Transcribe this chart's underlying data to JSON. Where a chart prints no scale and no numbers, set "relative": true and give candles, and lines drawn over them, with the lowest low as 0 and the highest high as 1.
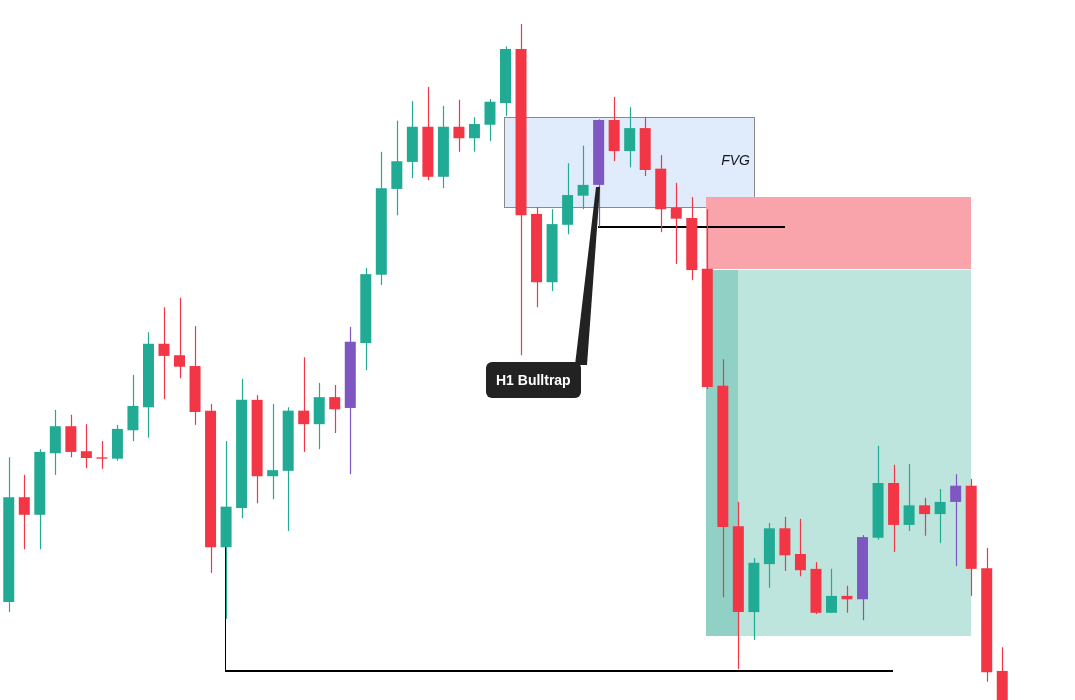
{
  "chart_data": {
    "type": "candlestick",
    "relative": true,
    "categories": [
      null,
      null,
      null,
      null,
      null,
      null,
      null,
      null,
      null,
      null,
      null,
      null,
      null,
      null,
      null,
      null,
      null,
      null,
      null,
      null,
      null,
      null,
      null,
      null,
      null,
      null,
      null,
      null,
      null,
      null,
      null,
      null,
      null,
      null,
      null,
      null,
      null,
      null,
      null,
      null,
      null,
      null,
      null,
      null,
      null,
      null,
      null,
      null,
      null,
      null,
      null,
      null,
      null,
      null,
      null,
      null,
      null,
      null,
      null,
      null,
      null,
      null,
      null,
      null,
      null
    ],
    "ohlc": [
      [
        0.145,
        0.359,
        0.13,
        0.3
      ],
      [
        0.3,
        0.333,
        0.223,
        0.274
      ],
      [
        0.274,
        0.371,
        0.223,
        0.367
      ],
      [
        0.365,
        0.429,
        0.333,
        0.405
      ],
      [
        0.405,
        0.422,
        0.359,
        0.367
      ],
      [
        0.368,
        0.408,
        0.343,
        0.358
      ],
      [
        0.359,
        0.383,
        0.342,
        0.357
      ],
      [
        0.357,
        0.407,
        0.354,
        0.401
      ],
      [
        0.399,
        0.481,
        0.383,
        0.435
      ],
      [
        0.433,
        0.544,
        0.388,
        0.527
      ],
      [
        0.527,
        0.581,
        0.445,
        0.509
      ],
      [
        0.51,
        0.595,
        0.476,
        0.493
      ],
      [
        0.494,
        0.553,
        0.407,
        0.426
      ],
      [
        0.428,
        0.438,
        0.188,
        0.226
      ],
      [
        0.226,
        0.383,
        0.12,
        0.286
      ],
      [
        0.284,
        0.475,
        0.269,
        0.444
      ],
      [
        0.444,
        0.451,
        0.291,
        0.331
      ],
      [
        0.331,
        0.438,
        0.297,
        0.34
      ],
      [
        0.339,
        0.433,
        0.25,
        0.428
      ],
      [
        0.428,
        0.507,
        0.367,
        0.408
      ],
      [
        0.408,
        0.469,
        0.371,
        0.448
      ],
      [
        0.448,
        0.466,
        0.395,
        0.43
      ],
      [
        0.432,
        0.552,
        0.334,
        0.53
      ],
      [
        0.528,
        0.639,
        0.488,
        0.63
      ],
      [
        0.629,
        0.811,
        0.614,
        0.757
      ],
      [
        0.756,
        0.857,
        0.717,
        0.797
      ],
      [
        0.796,
        0.886,
        0.772,
        0.848
      ],
      [
        0.848,
        0.907,
        0.769,
        0.774
      ],
      [
        0.774,
        0.879,
        0.757,
        0.848
      ],
      [
        0.848,
        0.888,
        0.811,
        0.831
      ],
      [
        0.831,
        0.862,
        0.811,
        0.852
      ],
      [
        0.851,
        0.889,
        0.827,
        0.885
      ],
      [
        0.883,
        0.967,
        0.864,
        0.963
      ],
      [
        0.963,
        1.0,
        0.51,
        0.717
      ],
      [
        0.719,
        0.729,
        0.581,
        0.618
      ],
      [
        0.618,
        0.726,
        0.605,
        0.704
      ],
      [
        0.703,
        0.794,
        0.689,
        0.747
      ],
      [
        0.746,
        0.82,
        0.726,
        0.762
      ],
      [
        0.762,
        0.859,
        0.7,
        0.858
      ],
      [
        0.858,
        0.892,
        0.797,
        0.812
      ],
      [
        0.812,
        0.877,
        0.788,
        0.846
      ],
      [
        0.846,
        0.862,
        0.775,
        0.784
      ],
      [
        0.786,
        0.806,
        0.692,
        0.726
      ],
      [
        0.728,
        0.765,
        0.645,
        0.712
      ],
      [
        0.713,
        0.744,
        0.621,
        0.636
      ],
      [
        0.638,
        0.726,
        0.46,
        0.463
      ],
      [
        0.465,
        0.504,
        0.152,
        0.256
      ],
      [
        0.257,
        0.293,
        0.046,
        0.13
      ],
      [
        0.13,
        0.21,
        0.089,
        0.203
      ],
      [
        0.201,
        0.262,
        0.166,
        0.254
      ],
      [
        0.254,
        0.271,
        0.191,
        0.214
      ],
      [
        0.216,
        0.268,
        0.183,
        0.192
      ],
      [
        0.194,
        0.204,
        0.127,
        0.129
      ],
      [
        0.129,
        0.194,
        0.129,
        0.154
      ],
      [
        0.154,
        0.169,
        0.129,
        0.149
      ],
      [
        0.149,
        0.244,
        0.118,
        0.241
      ],
      [
        0.24,
        0.376,
        0.237,
        0.321
      ],
      [
        0.321,
        0.348,
        0.219,
        0.259
      ],
      [
        0.259,
        0.349,
        0.25,
        0.288
      ],
      [
        0.288,
        0.299,
        0.243,
        0.275
      ],
      [
        0.275,
        0.312,
        0.232,
        0.293
      ],
      [
        0.293,
        0.334,
        0.198,
        0.317
      ],
      [
        0.317,
        0.327,
        0.154,
        0.194
      ],
      [
        0.195,
        0.225,
        0.027,
        0.041
      ],
      [
        0.043,
        0.078,
        0.0,
        0.0
      ]
    ],
    "colors": [
      "#22ab94",
      "#f23645",
      "#22ab94",
      "#22ab94",
      "#f23645",
      "#f23645",
      "#f23645",
      "#22ab94",
      "#22ab94",
      "#22ab94",
      "#f23645",
      "#f23645",
      "#f23645",
      "#f23645",
      "#22ab94",
      "#22ab94",
      "#f23645",
      "#22ab94",
      "#22ab94",
      "#f23645",
      "#22ab94",
      "#f23645",
      "#7e57c2",
      "#22ab94",
      "#22ab94",
      "#22ab94",
      "#22ab94",
      "#f23645",
      "#22ab94",
      "#f23645",
      "#22ab94",
      "#22ab94",
      "#22ab94",
      "#f23645",
      "#f23645",
      "#22ab94",
      "#22ab94",
      "#22ab94",
      "#7e57c2",
      "#f23645",
      "#22ab94",
      "#f23645",
      "#f23645",
      "#f23645",
      "#f23645",
      "#f23645",
      "#f23645",
      "#f23645",
      "#22ab94",
      "#22ab94",
      "#f23645",
      "#f23645",
      "#f23645",
      "#22ab94",
      "#f23645",
      "#7e57c2",
      "#22ab94",
      "#f23645",
      "#22ab94",
      "#f23645",
      "#22ab94",
      "#7e57c2",
      "#f23645",
      "#f23645",
      "#f23645"
    ],
    "annotations": [
      "FVG",
      "H1 Bulltrap"
    ],
    "grid": false
  }
}
